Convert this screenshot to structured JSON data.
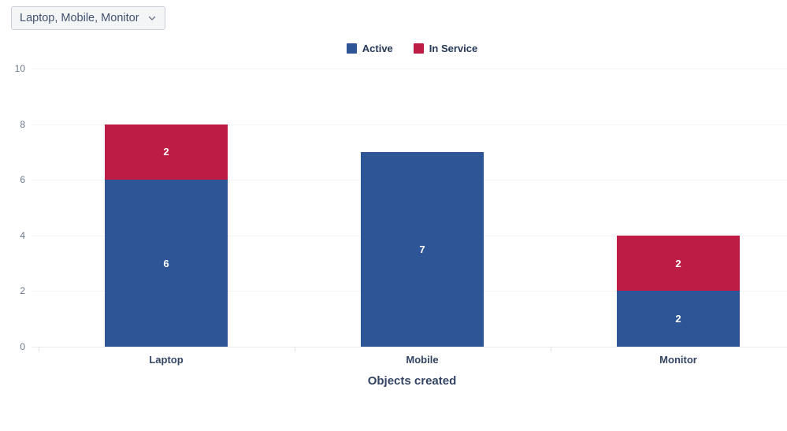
{
  "filter": {
    "label": "Laptop, Mobile, Monitor"
  },
  "chart_data": {
    "type": "bar",
    "stacked": true,
    "title": "",
    "xlabel": "Objects created",
    "ylabel": "",
    "categories": [
      "Laptop",
      "Mobile",
      "Monitor"
    ],
    "series": [
      {
        "name": "Active",
        "color": "#2E5696",
        "values": [
          6,
          7,
          2
        ]
      },
      {
        "name": "In Service",
        "color": "#BD1D44",
        "values": [
          2,
          0,
          2
        ]
      }
    ],
    "ylim": [
      0,
      10
    ],
    "yticks": [
      0,
      2,
      4,
      6,
      8,
      10
    ],
    "grid": true,
    "legend_position": "top",
    "value_labels": "inside-white"
  },
  "colors": {
    "active": "#2E5696",
    "in_service": "#BD1D44",
    "grid": "#F2F3F5",
    "tick_text": "#6B778C",
    "label_text": "#344563"
  }
}
